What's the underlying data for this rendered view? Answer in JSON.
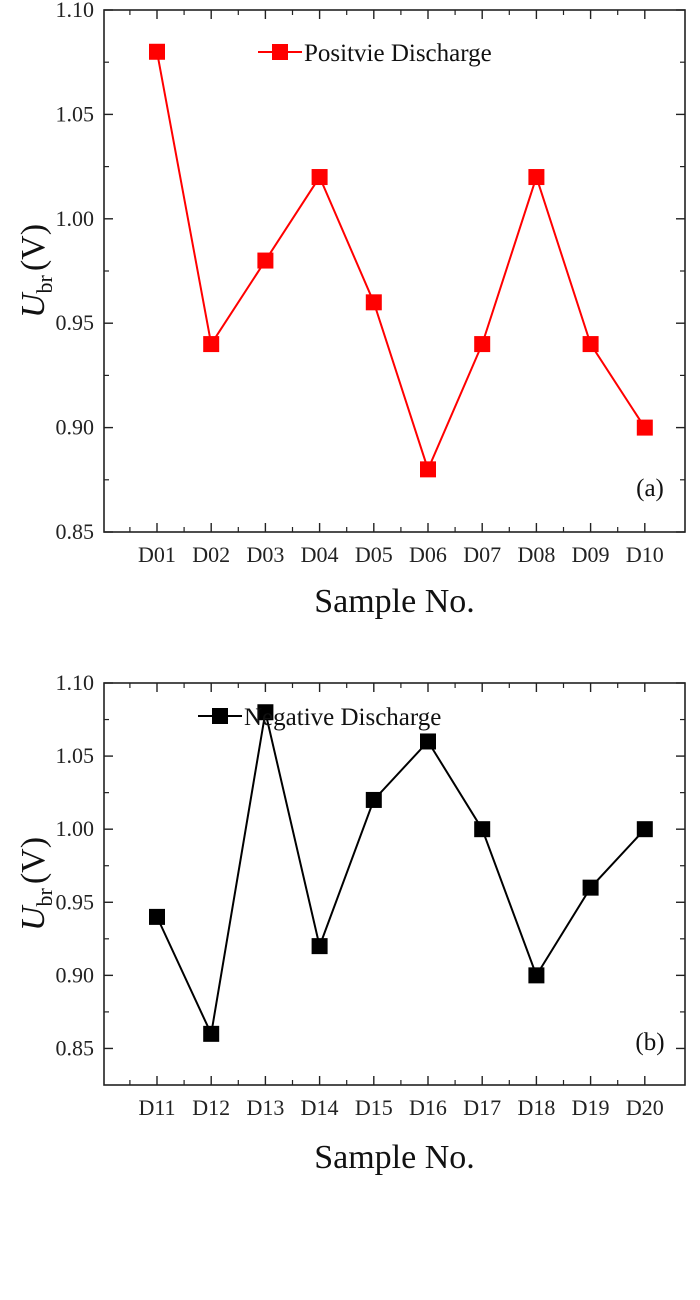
{
  "chart_data": [
    {
      "type": "line",
      "panel_label": "(a)",
      "xlabel": "Sample No.",
      "ylabel_main": "U",
      "ylabel_sub": "br",
      "ylabel_unit": "(V)",
      "categories": [
        "D01",
        "D02",
        "D03",
        "D04",
        "D05",
        "D06",
        "D07",
        "D08",
        "D09",
        "D10"
      ],
      "series": [
        {
          "name": "Positvie Discharge",
          "color": "#ff0000",
          "marker": "square",
          "values": [
            1.08,
            0.94,
            0.98,
            1.02,
            0.96,
            0.88,
            0.94,
            1.02,
            0.94,
            0.9
          ]
        }
      ],
      "ylim": [
        0.85,
        1.1
      ],
      "yticks": [
        "0.85",
        "0.90",
        "0.95",
        "1.00",
        "1.05",
        "1.10"
      ],
      "legend": "top-center",
      "grid": false
    },
    {
      "type": "line",
      "panel_label": "(b)",
      "xlabel": "Sample No.",
      "ylabel_main": "U",
      "ylabel_sub": "br",
      "ylabel_unit": "(V)",
      "categories": [
        "D11",
        "D12",
        "D13",
        "D14",
        "D15",
        "D16",
        "D17",
        "D18",
        "D19",
        "D20"
      ],
      "series": [
        {
          "name": "Negative Discharge",
          "color": "#000000",
          "marker": "square",
          "values": [
            0.94,
            0.86,
            1.08,
            0.92,
            1.02,
            1.06,
            1.0,
            0.9,
            0.96,
            1.0
          ]
        }
      ],
      "ylim": [
        0.825,
        1.1
      ],
      "yticks": [
        "0.85",
        "0.90",
        "0.95",
        "1.00",
        "1.05",
        "1.10"
      ],
      "legend": "top-center",
      "grid": false
    }
  ]
}
